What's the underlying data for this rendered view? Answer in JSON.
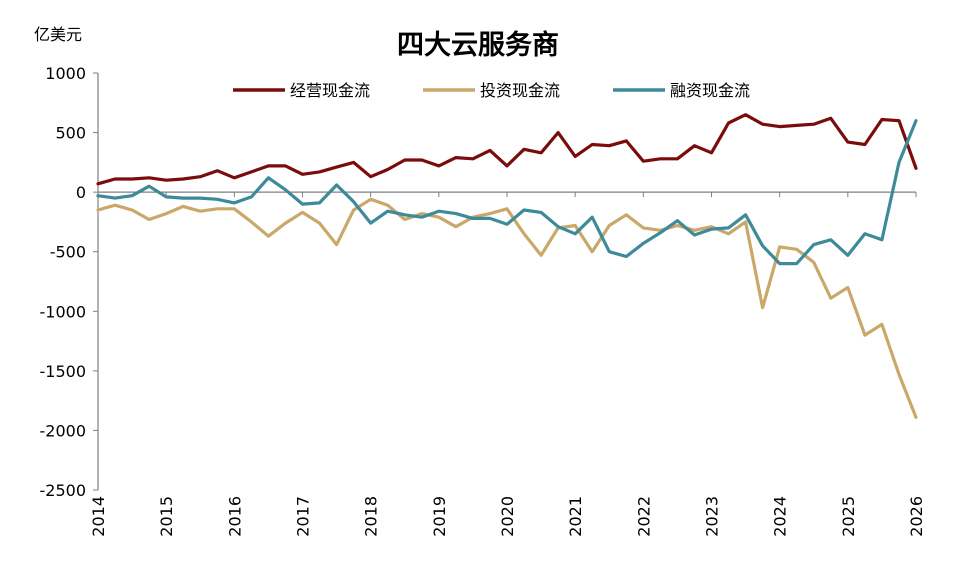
{
  "chart_data": {
    "type": "line",
    "title": "四大云服务商",
    "ylabel": "亿美元",
    "ylim": [
      -2500,
      1000
    ],
    "yticks": [
      1000,
      500,
      0,
      -500,
      -1000,
      -1500,
      -2000,
      -2500
    ],
    "xlim": [
      2014,
      2026
    ],
    "xticks": [
      "2014",
      "2015",
      "2016",
      "2017",
      "2018",
      "2019",
      "2020",
      "2021",
      "2022",
      "2023",
      "2024",
      "2025",
      "2026"
    ],
    "legend_position": "top",
    "grid": false,
    "x": [
      2014.0,
      2014.25,
      2014.5,
      2014.75,
      2015.0,
      2015.25,
      2015.5,
      2015.75,
      2016.0,
      2016.25,
      2016.5,
      2016.75,
      2017.0,
      2017.25,
      2017.5,
      2017.75,
      2018.0,
      2018.25,
      2018.5,
      2018.75,
      2019.0,
      2019.25,
      2019.5,
      2019.75,
      2020.0,
      2020.25,
      2020.5,
      2020.75,
      2021.0,
      2021.25,
      2021.5,
      2021.75,
      2022.0,
      2022.25,
      2022.5,
      2022.75,
      2023.0,
      2023.25,
      2023.5,
      2023.75,
      2024.0,
      2024.25,
      2024.5,
      2024.75,
      2025.0,
      2025.25,
      2025.5,
      2025.75,
      2026.0
    ],
    "series": [
      {
        "name": "经营现金流",
        "color": "#7a0c0c",
        "values": [
          70,
          110,
          110,
          120,
          100,
          110,
          130,
          180,
          120,
          170,
          220,
          220,
          150,
          170,
          210,
          250,
          130,
          190,
          270,
          270,
          220,
          290,
          280,
          350,
          220,
          360,
          330,
          500,
          300,
          400,
          390,
          430,
          260,
          280,
          280,
          390,
          330,
          580,
          650,
          570,
          550,
          560,
          570,
          620,
          420,
          400,
          610,
          600,
          200
        ]
      },
      {
        "name": "投资现金流",
        "color": "#c9a86a",
        "values": [
          -150,
          -110,
          -150,
          -230,
          -180,
          -120,
          -160,
          -140,
          -140,
          -250,
          -370,
          -260,
          -170,
          -260,
          -440,
          -150,
          -60,
          -110,
          -230,
          -180,
          -210,
          -290,
          -210,
          -180,
          -140,
          -350,
          -530,
          -300,
          -280,
          -500,
          -280,
          -190,
          -300,
          -320,
          -280,
          -320,
          -290,
          -350,
          -250,
          -970,
          -460,
          -480,
          -590,
          -890,
          -800,
          -1200,
          -1110,
          -1530,
          -1890
        ]
      },
      {
        "name": "融资现金流",
        "color": "#3d8a9a",
        "values": [
          -30,
          -50,
          -30,
          50,
          -40,
          -50,
          -50,
          -60,
          -90,
          -40,
          120,
          20,
          -100,
          -90,
          60,
          -80,
          -260,
          -160,
          -190,
          -210,
          -160,
          -180,
          -220,
          -220,
          -270,
          -150,
          -170,
          -290,
          -350,
          -210,
          -500,
          -540,
          -430,
          -340,
          -240,
          -360,
          -310,
          -300,
          -190,
          -450,
          -600,
          -600,
          -440,
          -400,
          -530,
          -350,
          -400,
          250,
          600
        ]
      }
    ]
  }
}
